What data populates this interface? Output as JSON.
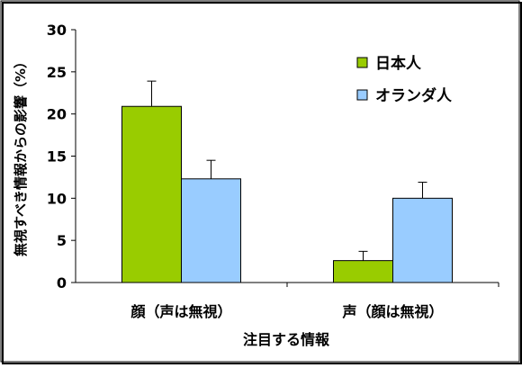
{
  "chart_data": {
    "type": "bar",
    "categories": [
      "顔（声は無視）",
      "声（顔は無視）"
    ],
    "series": [
      {
        "name": "日本人",
        "values": [
          20.9,
          2.6
        ],
        "errors": [
          3.0,
          1.1
        ],
        "color": "#99cc00"
      },
      {
        "name": "オランダ人",
        "values": [
          12.3,
          10.0
        ],
        "errors": [
          2.2,
          1.9
        ],
        "color": "#99ccff"
      }
    ],
    "ylim": [
      0,
      30
    ],
    "yticks": [
      "0",
      "5",
      "10",
      "15",
      "20",
      "25",
      "30"
    ],
    "ylabel": "無視すべき情報からの影響（%）",
    "xlabel": "注目する情報",
    "legend_position": "top-right",
    "grid": false
  }
}
